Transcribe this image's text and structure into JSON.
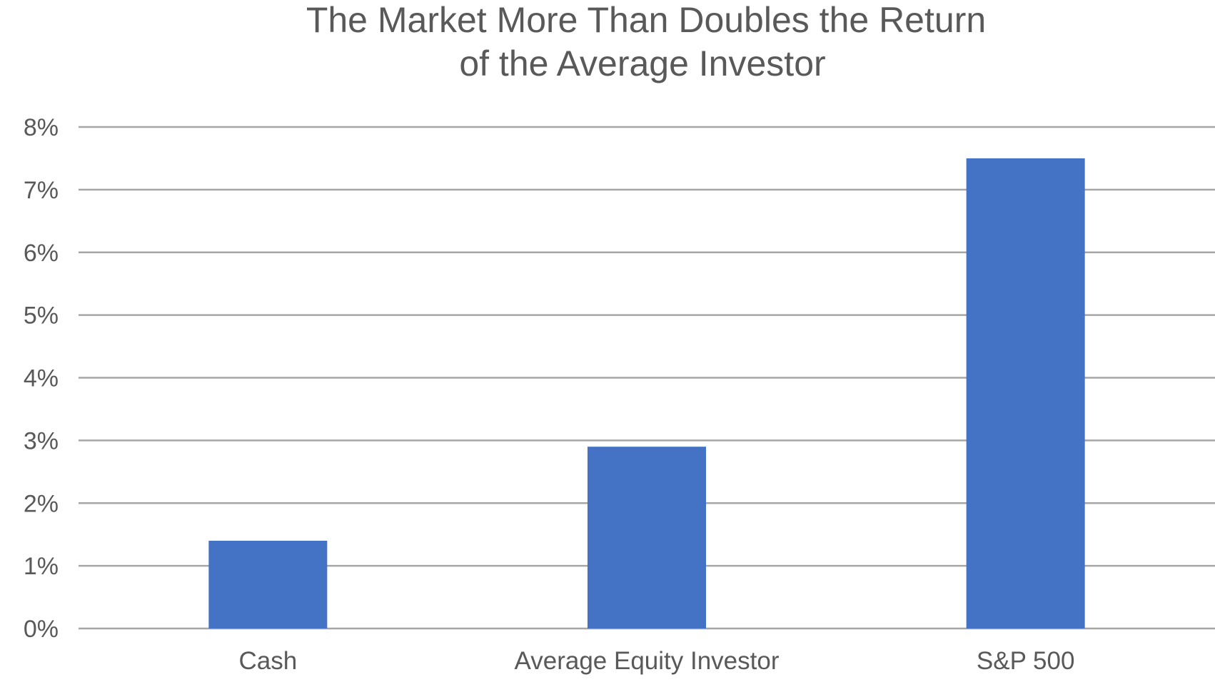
{
  "chart_data": {
    "type": "bar",
    "title_lines": [
      "The Market More Than Doubles the Return",
      "of the Average Investor"
    ],
    "categories": [
      "Cash",
      "Average Equity Investor",
      "S&P 500"
    ],
    "values": [
      1.4,
      2.9,
      7.5
    ],
    "ylim": [
      0,
      8
    ],
    "yticks": [
      "0%",
      "1%",
      "2%",
      "3%",
      "4%",
      "5%",
      "6%",
      "7%",
      "8%"
    ],
    "xlabel": "",
    "ylabel": "",
    "grid": true,
    "legend": "none",
    "bar_color": "#4472c4"
  }
}
